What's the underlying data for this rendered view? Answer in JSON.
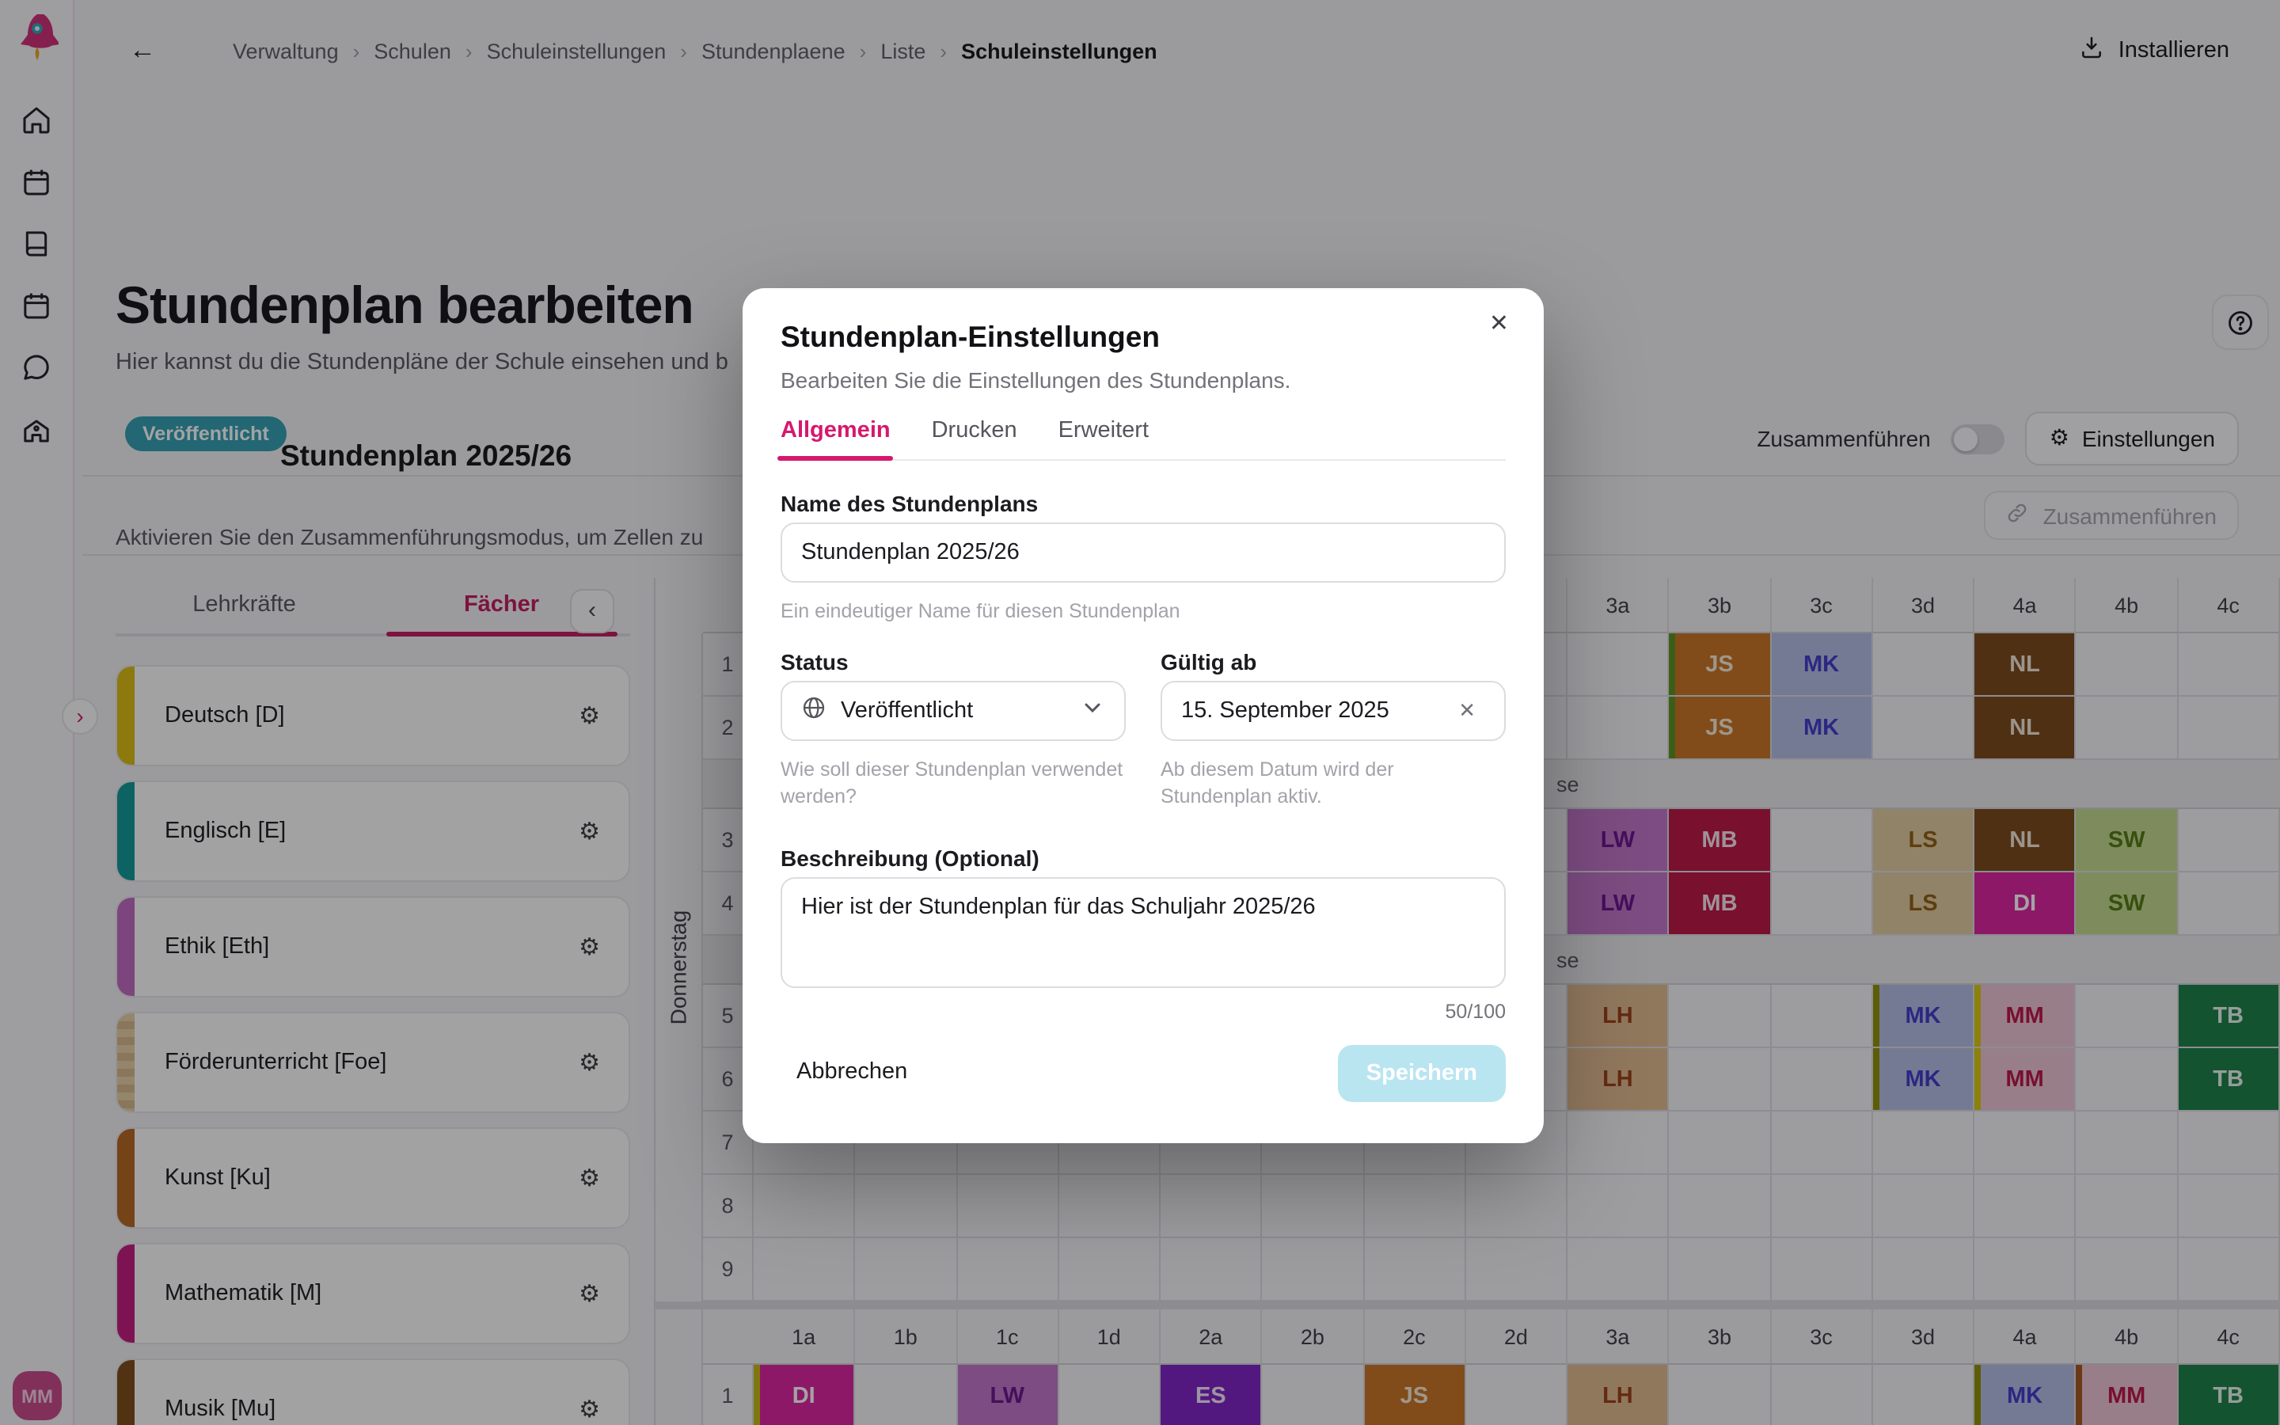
{
  "colors": {
    "accent_pink": "#d6186e",
    "badge_teal": "#2f9fb1",
    "save_button": "#b9e5f1",
    "backdrop": "rgba(12,12,17,0.38)"
  },
  "rail": {
    "icons": [
      "rocket-logo",
      "home-icon",
      "calendar-icon",
      "book-icon",
      "calendar-icon",
      "chat-icon",
      "school-icon"
    ],
    "avatar_initials": "MM"
  },
  "header": {
    "back_icon": "←",
    "breadcrumb": [
      "Verwaltung",
      "Schulen",
      "Schuleinstellungen",
      "Stundenplaene",
      "Liste",
      "Schuleinstellungen"
    ],
    "breadcrumb_separator": "›",
    "install_label": "Installieren"
  },
  "page": {
    "title": "Stundenplan bearbeiten",
    "subtitle_visible": "Hier kannst du die Stundenpläne der Schule einsehen und b",
    "status_badge": "Veröffentlicht",
    "plan_title": "Stundenplan 2025/26",
    "merge_info_visible": "Aktivieren Sie den Zusammenführungsmodus, um Zellen zu",
    "merge_toggle_label": "Zusammenführen",
    "settings_button": "Einstellungen",
    "merge_button": "Zusammenführen",
    "settings_gear": "⚙",
    "collapse_chevron": "‹",
    "expand_chevron": "›",
    "help_icon": "?"
  },
  "panel": {
    "tabs": [
      {
        "label": "Lehrkräfte",
        "active": false
      },
      {
        "label": "Fächer",
        "active": true
      }
    ],
    "subjects": [
      {
        "name": "Deutsch [D]",
        "color": "#dcbb0e"
      },
      {
        "name": "Englisch [E]",
        "color": "#0e9898"
      },
      {
        "name": "Ethik [Eth]",
        "color": "#c168c1"
      },
      {
        "name": "Förderunterricht [Foe]",
        "color": "#e7cfa6",
        "striped": true,
        "stripe_color": "#d5b78a"
      },
      {
        "name": "Kunst [Ku]",
        "color": "#b5651d"
      },
      {
        "name": "Mathematik [M]",
        "color": "#c4177f"
      },
      {
        "name": "Musik [Mu]",
        "color": "#7b4a14"
      }
    ],
    "gear_icon": "⚙"
  },
  "grid": {
    "columns": [
      "1a",
      "1b",
      "1c",
      "1d",
      "2a",
      "2b",
      "2c",
      "2d",
      "3a",
      "3b",
      "3c",
      "3d",
      "4a",
      "4b",
      "4c"
    ],
    "cell_styles": {
      "JS": {
        "bg": "#c8731f",
        "fg": "#f7ead7"
      },
      "MK": {
        "bg": "#b4bde6",
        "fg": "#4038c8"
      },
      "NL": {
        "bg": "#7a4616",
        "fg": "#f2e6d7"
      },
      "LW": {
        "bg": "#c273c8",
        "fg": "#66128c"
      },
      "MB": {
        "bg": "#ba1342",
        "fg": "#fbe3ec"
      },
      "LS": {
        "bg": "#e3cc9f",
        "fg": "#8f5d10"
      },
      "SW": {
        "bg": "#c4da8d",
        "fg": "#4f7a10"
      },
      "DI": {
        "bg": "#dc1f9e",
        "fg": "#ffffff",
        "pattern": "dots"
      },
      "LH": {
        "bg": "#e0ba8d",
        "fg": "#9c3d12"
      },
      "MM": {
        "bg": "#edc4d4",
        "fg": "#bb1145",
        "pattern": "stripes"
      },
      "TB": {
        "bg": "#177f44",
        "fg": "#e9f6ee"
      },
      "ES": {
        "bg": "#7d1fc4",
        "fg": "#f4e9fb"
      }
    },
    "day1": {
      "label": "Donnerstag",
      "rows": [
        {
          "num": "1",
          "cells": [
            {
              "c": "3b",
              "t": "JS",
              "bar": "#5a8f1d"
            },
            {
              "c": "3c",
              "t": "MK"
            },
            {
              "c": "4a",
              "t": "NL"
            }
          ]
        },
        {
          "num": "2",
          "cells": [
            {
              "c": "3b",
              "t": "JS",
              "bar": "#5a8f1d"
            },
            {
              "c": "3c",
              "t": "MK"
            },
            {
              "c": "4a",
              "t": "NL"
            }
          ]
        },
        {
          "band": "se"
        },
        {
          "num": "3",
          "cells": [
            {
              "c": "3a",
              "t": "LW"
            },
            {
              "c": "3b",
              "t": "MB"
            },
            {
              "c": "3d",
              "t": "LS"
            },
            {
              "c": "4a",
              "t": "NL"
            },
            {
              "c": "4b",
              "t": "SW"
            }
          ]
        },
        {
          "num": "4",
          "cells": [
            {
              "c": "3a",
              "t": "LW"
            },
            {
              "c": "3b",
              "t": "MB"
            },
            {
              "c": "3d",
              "t": "LS"
            },
            {
              "c": "4a",
              "t": "DI"
            },
            {
              "c": "4b",
              "t": "SW"
            }
          ]
        },
        {
          "band": "se"
        },
        {
          "num": "5",
          "cells": [
            {
              "c": "3a",
              "t": "LH"
            },
            {
              "c": "3d",
              "t": "MK",
              "bar": "#8f8f00"
            },
            {
              "c": "4a",
              "t": "MM",
              "bar": "#d8c90a"
            },
            {
              "c": "4c",
              "t": "TB"
            }
          ]
        },
        {
          "num": "6",
          "cells": [
            {
              "c": "3a",
              "t": "LH"
            },
            {
              "c": "3d",
              "t": "MK",
              "bar": "#8f8f00"
            },
            {
              "c": "4a",
              "t": "MM",
              "bar": "#d8c90a"
            },
            {
              "c": "4c",
              "t": "TB"
            }
          ]
        },
        {
          "num": "7",
          "cells": []
        },
        {
          "num": "8",
          "cells": []
        },
        {
          "num": "9",
          "cells": []
        }
      ]
    },
    "day2": {
      "rows": [
        {
          "num": "1",
          "cells": [
            {
              "c": "1a",
              "t": "DI",
              "bar": "#c5b80a"
            },
            {
              "c": "1c",
              "t": "LW"
            },
            {
              "c": "2a",
              "t": "ES"
            },
            {
              "c": "2c",
              "t": "JS"
            },
            {
              "c": "3a",
              "t": "LH"
            },
            {
              "c": "4a",
              "t": "MK",
              "bar": "#8f8f00"
            },
            {
              "c": "4b",
              "t": "MM",
              "bar": "#a3541a"
            },
            {
              "c": "4c",
              "t": "TB"
            }
          ]
        }
      ]
    }
  },
  "modal": {
    "title": "Stundenplan-Einstellungen",
    "subtitle": "Bearbeiten Sie die Einstellungen des Stundenplans.",
    "close_icon": "✕",
    "tabs": [
      {
        "label": "Allgemein",
        "active": true
      },
      {
        "label": "Drucken",
        "active": false
      },
      {
        "label": "Erweitert",
        "active": false
      }
    ],
    "name_label": "Name des Stundenplans",
    "name_value": "Stundenplan 2025/26",
    "name_hint": "Ein eindeutiger Name für diesen Stundenplan",
    "status_label": "Status",
    "status_value": "Veröffentlicht",
    "status_hint": "Wie soll dieser Stundenplan verwendet werden?",
    "valid_from_label": "Gültig ab",
    "valid_from_value": "15. September 2025",
    "valid_from_clear": "✕",
    "valid_from_hint": "Ab diesem Datum wird der Stundenplan aktiv.",
    "description_label": "Beschreibung  (Optional)",
    "description_value": "Hier ist der Stundenplan für das Schuljahr 2025/26",
    "char_counter": "50/100",
    "cancel_button": "Abbrechen",
    "save_button": "Speichern"
  }
}
